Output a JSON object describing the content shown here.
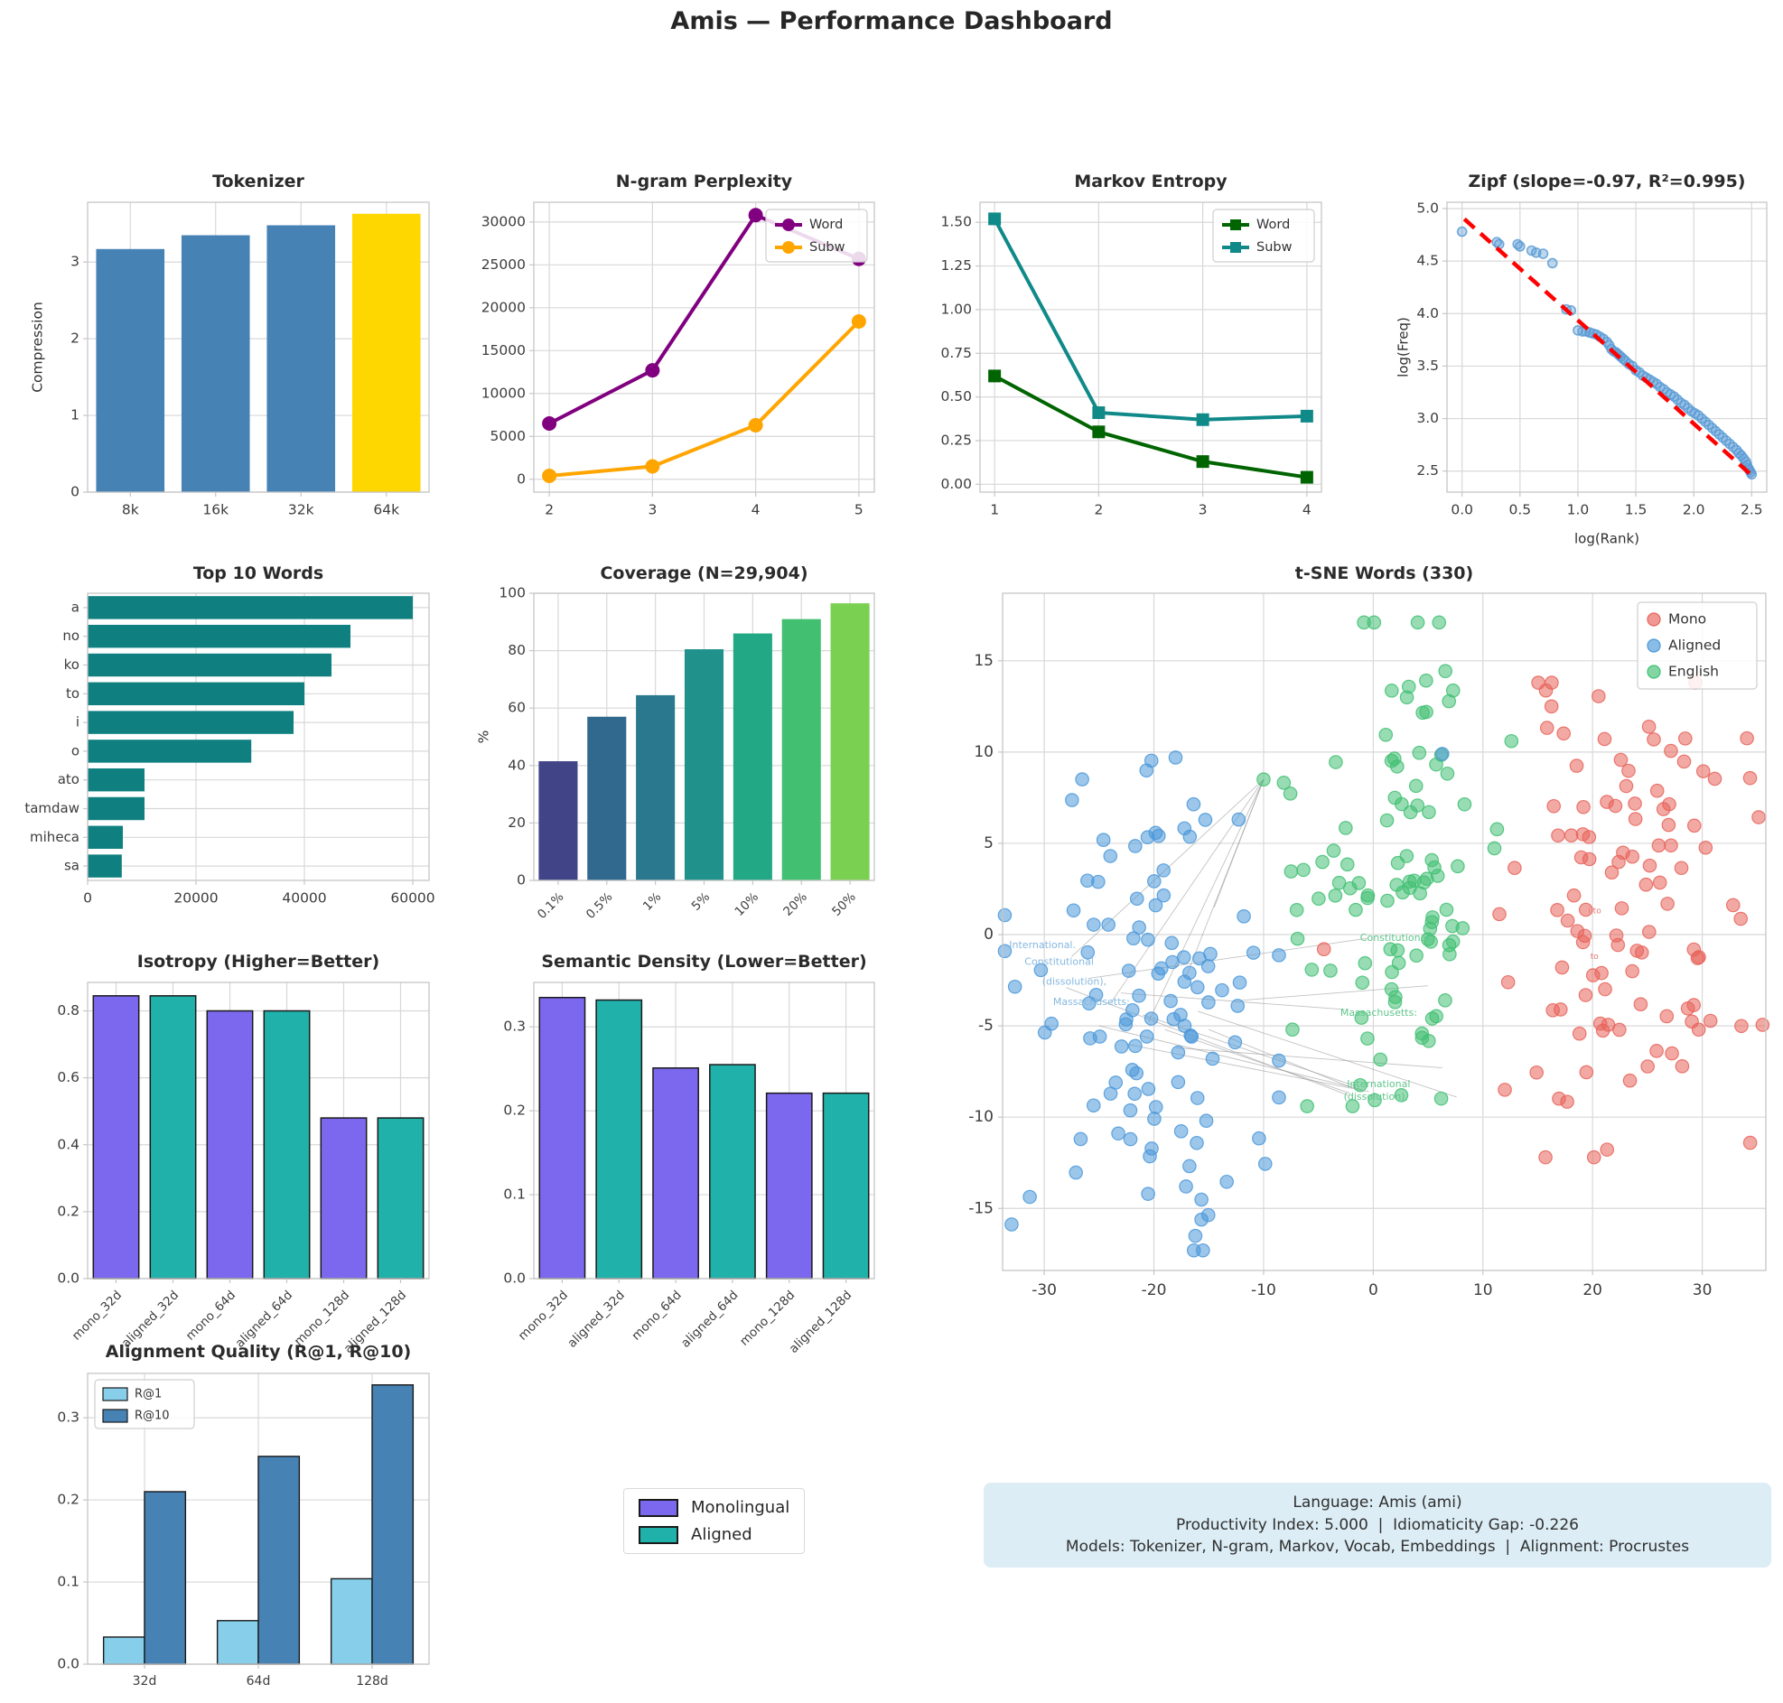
{
  "title": "Amis — Performance Dashboard",
  "legend_box": {
    "items": [
      {
        "label": "Monolingual",
        "color": "#7b68ee"
      },
      {
        "label": "Aligned",
        "color": "#20b2aa"
      }
    ]
  },
  "info_box": {
    "line1": "Language: Amis (ami)",
    "line2": "Productivity Index: 5.000  |  Idiomaticity Gap: -0.226",
    "line3": "Models: Tokenizer, N-gram, Markov, Vocab, Embeddings  |  Alignment: Procrustes"
  },
  "chart_data": [
    {
      "id": "tokenizer",
      "type": "bar",
      "title": "Tokenizer",
      "ylabel": "Compression",
      "categories": [
        "8k",
        "16k",
        "32k",
        "64k"
      ],
      "values": [
        3.17,
        3.35,
        3.48,
        3.63
      ],
      "bar_colors": [
        "#4682b4",
        "#4682b4",
        "#4682b4",
        "#ffd700"
      ],
      "ylim": [
        0,
        3.78
      ],
      "yticks": [
        0,
        1,
        2,
        3
      ],
      "ytick_labels": [
        "0",
        "1",
        "2",
        "3"
      ]
    },
    {
      "id": "ngram",
      "type": "line",
      "title": "N-gram Perplexity",
      "x": [
        2,
        3,
        4,
        5
      ],
      "xlim": [
        1.85,
        5.15
      ],
      "ylim": [
        -1500,
        32300
      ],
      "xticks": [
        2,
        3,
        4,
        5
      ],
      "xtick_labels": [
        "2",
        "3",
        "4",
        "5"
      ],
      "yticks": [
        0,
        5000,
        10000,
        15000,
        20000,
        25000,
        30000
      ],
      "ytick_labels": [
        "0",
        "5000",
        "10000",
        "15000",
        "20000",
        "25000",
        "30000"
      ],
      "series": [
        {
          "name": "Word",
          "color": "#800080",
          "marker": "circle",
          "values": [
            6500,
            12700,
            30800,
            25700
          ]
        },
        {
          "name": "Subw",
          "color": "#ffa500",
          "marker": "circle",
          "values": [
            400,
            1500,
            6300,
            18400
          ]
        }
      ],
      "legend_pos": "tr"
    },
    {
      "id": "markov",
      "type": "line",
      "title": "Markov Entropy",
      "x": [
        1,
        2,
        3,
        4
      ],
      "xlim": [
        0.86,
        4.14
      ],
      "ylim": [
        -0.045,
        1.615
      ],
      "xticks": [
        1,
        2,
        3,
        4
      ],
      "xtick_labels": [
        "1",
        "2",
        "3",
        "4"
      ],
      "yticks": [
        0,
        0.25,
        0.5,
        0.75,
        1,
        1.25,
        1.5
      ],
      "ytick_labels": [
        "0.00",
        "0.25",
        "0.50",
        "0.75",
        "1.00",
        "1.25",
        "1.50"
      ],
      "series": [
        {
          "name": "Word",
          "color": "#006400",
          "marker": "square",
          "values": [
            0.62,
            0.3,
            0.13,
            0.04
          ]
        },
        {
          "name": "Subw",
          "color": "#108989",
          "marker": "square",
          "values": [
            1.52,
            0.41,
            0.37,
            0.39
          ]
        }
      ],
      "legend_pos": "tr"
    },
    {
      "id": "zipf",
      "type": "zipf",
      "title": "Zipf (slope=-0.97, R²=0.995)",
      "xlabel": "log(Rank)",
      "ylabel": "log(Freq)",
      "xlim": [
        -0.13,
        2.63
      ],
      "ylim": [
        2.3,
        5.06
      ],
      "xticks": [
        0,
        0.5,
        1,
        1.5,
        2,
        2.5
      ],
      "xtick_labels": [
        "0.0",
        "0.5",
        "1.0",
        "1.5",
        "2.0",
        "2.5"
      ],
      "yticks": [
        2.5,
        3,
        3.5,
        4,
        4.5,
        5
      ],
      "ytick_labels": [
        "2.5",
        "3.0",
        "3.5",
        "4.0",
        "4.5",
        "5.0"
      ],
      "point_color": "#5b9bd5",
      "trend_color": "#ff0000",
      "trend": [
        [
          0.02,
          4.9
        ],
        [
          2.5,
          2.46
        ]
      ],
      "points": [
        [
          0.0,
          4.78
        ],
        [
          0.3,
          4.68
        ],
        [
          0.32,
          4.66
        ],
        [
          0.48,
          4.66
        ],
        [
          0.5,
          4.64
        ],
        [
          0.6,
          4.6
        ],
        [
          0.64,
          4.58
        ],
        [
          0.7,
          4.57
        ],
        [
          0.78,
          4.48
        ],
        [
          0.9,
          4.04
        ],
        [
          0.94,
          4.03
        ],
        [
          1.0,
          3.84
        ],
        [
          1.04,
          3.83
        ],
        [
          1.07,
          3.83
        ],
        [
          1.1,
          3.82
        ],
        [
          1.13,
          3.81
        ],
        [
          1.16,
          3.8
        ],
        [
          1.19,
          3.78
        ],
        [
          1.22,
          3.76
        ],
        [
          1.25,
          3.73
        ],
        [
          1.27,
          3.7
        ],
        [
          1.29,
          3.66
        ],
        [
          1.31,
          3.64
        ],
        [
          1.33,
          3.63
        ],
        [
          1.35,
          3.61
        ],
        [
          1.37,
          3.59
        ],
        [
          1.39,
          3.57
        ],
        [
          1.41,
          3.55
        ],
        [
          1.44,
          3.52
        ],
        [
          1.47,
          3.5
        ],
        [
          1.5,
          3.46
        ],
        [
          1.53,
          3.44
        ],
        [
          1.56,
          3.41
        ],
        [
          1.59,
          3.39
        ],
        [
          1.62,
          3.37
        ],
        [
          1.65,
          3.35
        ],
        [
          1.68,
          3.33
        ],
        [
          1.71,
          3.3
        ],
        [
          1.74,
          3.28
        ],
        [
          1.77,
          3.25
        ],
        [
          1.8,
          3.23
        ],
        [
          1.83,
          3.21
        ],
        [
          1.86,
          3.18
        ],
        [
          1.89,
          3.15
        ],
        [
          1.92,
          3.13
        ],
        [
          1.95,
          3.1
        ],
        [
          1.98,
          3.07
        ],
        [
          2.01,
          3.05
        ],
        [
          2.04,
          3.03
        ],
        [
          2.07,
          3.0
        ],
        [
          2.1,
          2.97
        ],
        [
          2.13,
          2.94
        ],
        [
          2.16,
          2.91
        ],
        [
          2.19,
          2.88
        ],
        [
          2.22,
          2.85
        ],
        [
          2.25,
          2.82
        ],
        [
          2.28,
          2.79
        ],
        [
          2.31,
          2.76
        ],
        [
          2.34,
          2.73
        ],
        [
          2.37,
          2.7
        ],
        [
          2.39,
          2.67
        ],
        [
          2.41,
          2.65
        ],
        [
          2.43,
          2.62
        ],
        [
          2.45,
          2.59
        ],
        [
          2.46,
          2.56
        ],
        [
          2.47,
          2.53
        ],
        [
          2.48,
          2.51
        ],
        [
          2.49,
          2.49
        ],
        [
          2.5,
          2.47
        ]
      ]
    },
    {
      "id": "top_words",
      "type": "barh",
      "title": "Top 10 Words",
      "categories": [
        "a",
        "no",
        "ko",
        "to",
        "i",
        "o",
        "ato",
        "tamdaw",
        "miheca",
        "sa"
      ],
      "values": [
        60000,
        48500,
        45000,
        40000,
        38000,
        30200,
        10500,
        10500,
        6500,
        6300
      ],
      "bar_color": "#0f7f80",
      "xlim": [
        0,
        63000
      ],
      "xticks": [
        0,
        20000,
        40000,
        60000
      ],
      "xtick_labels": [
        "0",
        "20000",
        "40000",
        "60000"
      ]
    },
    {
      "id": "coverage",
      "type": "bar",
      "title": "Coverage (N=29,904)",
      "ylabel": "%",
      "categories": [
        "0.1%",
        "0.5%",
        "1%",
        "5%",
        "10%",
        "20%",
        "50%"
      ],
      "values": [
        41.5,
        57,
        64.5,
        80.5,
        86,
        91,
        96.5
      ],
      "bar_colors": [
        "#414487",
        "#31688e",
        "#2a788e",
        "#21918c",
        "#22a884",
        "#43bf71",
        "#7ad151"
      ],
      "ylim": [
        0,
        100
      ],
      "yticks": [
        0,
        20,
        40,
        60,
        80,
        100
      ],
      "ytick_labels": [
        "0",
        "20",
        "40",
        "60",
        "80",
        "100"
      ],
      "rotate_xticks": 45
    },
    {
      "id": "tsne",
      "type": "tsne",
      "title": "t-SNE Words (330)",
      "xlim": [
        -33.8,
        35.8
      ],
      "ylim": [
        -18.4,
        18.7
      ],
      "xticks": [
        -30,
        -20,
        -10,
        0,
        10,
        20,
        30
      ],
      "xtick_labels": [
        "-30",
        "-20",
        "-10",
        "0",
        "10",
        "20",
        "30"
      ],
      "yticks": [
        -15,
        -10,
        -5,
        0,
        5,
        10,
        15
      ],
      "ytick_labels": [
        "-15",
        "-10",
        "-5",
        "0",
        "5",
        "10",
        "15"
      ],
      "legend": [
        {
          "label": "Mono",
          "color": "#e8635a"
        },
        {
          "label": "Aligned",
          "color": "#4a98d9"
        },
        {
          "label": "English",
          "color": "#41c073"
        }
      ],
      "clusters": [
        {
          "name": "Mono",
          "color": "#e8635a",
          "count": 108,
          "cx": 23,
          "cy": 1.2,
          "sx": 5.2,
          "sy": 6.3,
          "seed": 11,
          "bounds": [
            11.5,
            35.5,
            -12.2,
            13.8
          ]
        },
        {
          "name": "Aligned",
          "color": "#4a98d9",
          "count": 112,
          "cx": -21,
          "cy": -3.2,
          "sx": 5.6,
          "sy": 6.1,
          "seed": 22,
          "bounds": [
            -33.6,
            -8.6,
            -17.3,
            9.7
          ]
        },
        {
          "name": "English",
          "color": "#41c073",
          "count": 105,
          "cx": 2,
          "cy": 3.2,
          "sx": 4.6,
          "sy": 6.5,
          "seed": 33,
          "bounds": [
            -8.4,
            12.6,
            -9.4,
            17.1
          ]
        }
      ],
      "extra_points": [
        {
          "x": 6.3,
          "y": 9.9,
          "c": "#4a98d9"
        },
        {
          "x": -11.8,
          "y": 1.0,
          "c": "#4a98d9"
        },
        {
          "x": -10,
          "y": 8.5,
          "c": "#41c073"
        },
        {
          "x": -4.5,
          "y": -0.8,
          "c": "#e8635a"
        },
        {
          "x": 12,
          "y": -8.5,
          "c": "#e8635a"
        }
      ],
      "connectors": [
        [
          -27.5,
          -1.2,
          -10,
          8.5
        ],
        [
          -24,
          -3.8,
          -10,
          8.5
        ],
        [
          -20.5,
          -4.8,
          -10,
          8.5
        ],
        [
          -17,
          -2.2,
          -10,
          8.5
        ],
        [
          -14.5,
          1.5,
          -10,
          8.5
        ],
        [
          -26,
          -2.4,
          -0.5,
          -0.2
        ],
        [
          -23,
          -3.2,
          -2.6,
          -4.1
        ],
        [
          -21,
          -4.4,
          -1.6,
          -8.3
        ],
        [
          -19,
          -5.2,
          -2.1,
          -8.7
        ],
        [
          -25,
          -5,
          -1,
          -8.5
        ],
        [
          -22.5,
          -6,
          -0.4,
          -8.6
        ],
        [
          -18,
          -6.2,
          6.3,
          -7.3
        ],
        [
          -16,
          -4.2,
          7.6,
          -8.9
        ],
        [
          -28,
          -2.9,
          -2.3,
          -8.8
        ],
        [
          -15,
          -5.2,
          -1.9,
          -8.4
        ],
        [
          -12,
          -3.6,
          5,
          -2.8
        ]
      ],
      "annotations": [
        {
          "text": "International.",
          "x": -33.2,
          "y": -0.6,
          "color": "#86b8e0",
          "size": 11
        },
        {
          "text": "Constitutional",
          "x": -31.8,
          "y": -1.5,
          "color": "#86b8e0",
          "size": 11
        },
        {
          "text": "(dissolution),",
          "x": -30.2,
          "y": -2.6,
          "color": "#86b8e0",
          "size": 11
        },
        {
          "text": "Massachusetts:",
          "x": -29.2,
          "y": -3.7,
          "color": "#86b8e0",
          "size": 11
        },
        {
          "text": "Constitutional",
          "x": -1.2,
          "y": -0.2,
          "color": "#5fc68b",
          "size": 11
        },
        {
          "text": "Massachusetts:",
          "x": -3.0,
          "y": -4.3,
          "color": "#5fc68b",
          "size": 11
        },
        {
          "text": "International",
          "x": -2.4,
          "y": -8.2,
          "color": "#5fc68b",
          "size": 11
        },
        {
          "text": "(dissolution),",
          "x": -2.7,
          "y": -8.9,
          "color": "#5fc68b",
          "size": 11
        },
        {
          "text": "i to",
          "x": 19.6,
          "y": 1.3,
          "color": "#e07a72",
          "size": 9
        },
        {
          "text": "to",
          "x": 19.8,
          "y": -1.2,
          "color": "#e07a72",
          "size": 9
        }
      ]
    },
    {
      "id": "isotropy",
      "type": "bar",
      "title": "Isotropy (Higher=Better)",
      "categories": [
        "mono_32d",
        "aligned_32d",
        "mono_64d",
        "aligned_64d",
        "mono_128d",
        "aligned_128d"
      ],
      "values": [
        0.845,
        0.845,
        0.8,
        0.8,
        0.48,
        0.48
      ],
      "bar_colors": [
        "#7b68ee",
        "#20b2aa",
        "#7b68ee",
        "#20b2aa",
        "#7b68ee",
        "#20b2aa"
      ],
      "edge": "#1a1a1a",
      "ylim": [
        0,
        0.885
      ],
      "yticks": [
        0,
        0.2,
        0.4,
        0.6,
        0.8
      ],
      "ytick_labels": [
        "0.0",
        "0.2",
        "0.4",
        "0.6",
        "0.8"
      ],
      "rotate_xticks": 45
    },
    {
      "id": "semantic",
      "type": "bar",
      "title": "Semantic Density (Lower=Better)",
      "categories": [
        "mono_32d",
        "aligned_32d",
        "mono_64d",
        "aligned_64d",
        "mono_128d",
        "aligned_128d"
      ],
      "values": [
        0.335,
        0.332,
        0.251,
        0.255,
        0.221,
        0.221
      ],
      "bar_colors": [
        "#7b68ee",
        "#20b2aa",
        "#7b68ee",
        "#20b2aa",
        "#7b68ee",
        "#20b2aa"
      ],
      "edge": "#1a1a1a",
      "ylim": [
        0,
        0.353
      ],
      "yticks": [
        0,
        0.1,
        0.2,
        0.3
      ],
      "ytick_labels": [
        "0.0",
        "0.1",
        "0.2",
        "0.3"
      ],
      "rotate_xticks": 45
    },
    {
      "id": "alignment",
      "type": "groupbar",
      "title": "Alignment Quality (R@1, R@10)",
      "categories": [
        "32d",
        "64d",
        "128d"
      ],
      "series": [
        {
          "name": "R@1",
          "color": "#87ceeb",
          "values": [
            0.033,
            0.053,
            0.104
          ]
        },
        {
          "name": "R@10",
          "color": "#4682b4",
          "values": [
            0.21,
            0.253,
            0.34
          ]
        }
      ],
      "edge": "#1a1a1a",
      "ylim": [
        0,
        0.354
      ],
      "yticks": [
        0,
        0.1,
        0.2,
        0.3
      ],
      "ytick_labels": [
        "0.0",
        "0.1",
        "0.2",
        "0.3"
      ],
      "legend_pos": "tl"
    }
  ]
}
